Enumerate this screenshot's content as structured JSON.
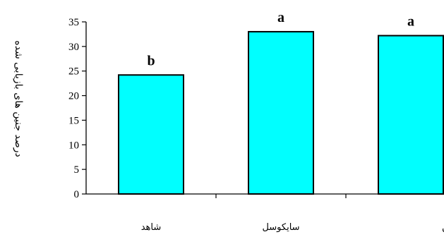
{
  "chart_data": {
    "type": "bar",
    "ylabel": "درصد جنین های بازیابی شده",
    "xlabel": "",
    "categories": [
      "شاهد",
      "سایکوسل",
      "بنزیل آدنین"
    ],
    "values": [
      24.2,
      33.0,
      32.2
    ],
    "significance_letters": [
      "b",
      "a",
      "a"
    ],
    "ylim": [
      0,
      35
    ],
    "yticks": [
      0,
      5,
      10,
      15,
      20,
      25,
      30,
      35
    ],
    "bar_color": "#00FFFF",
    "bar_border_color": "#000000",
    "grid": false,
    "legend": "none"
  }
}
